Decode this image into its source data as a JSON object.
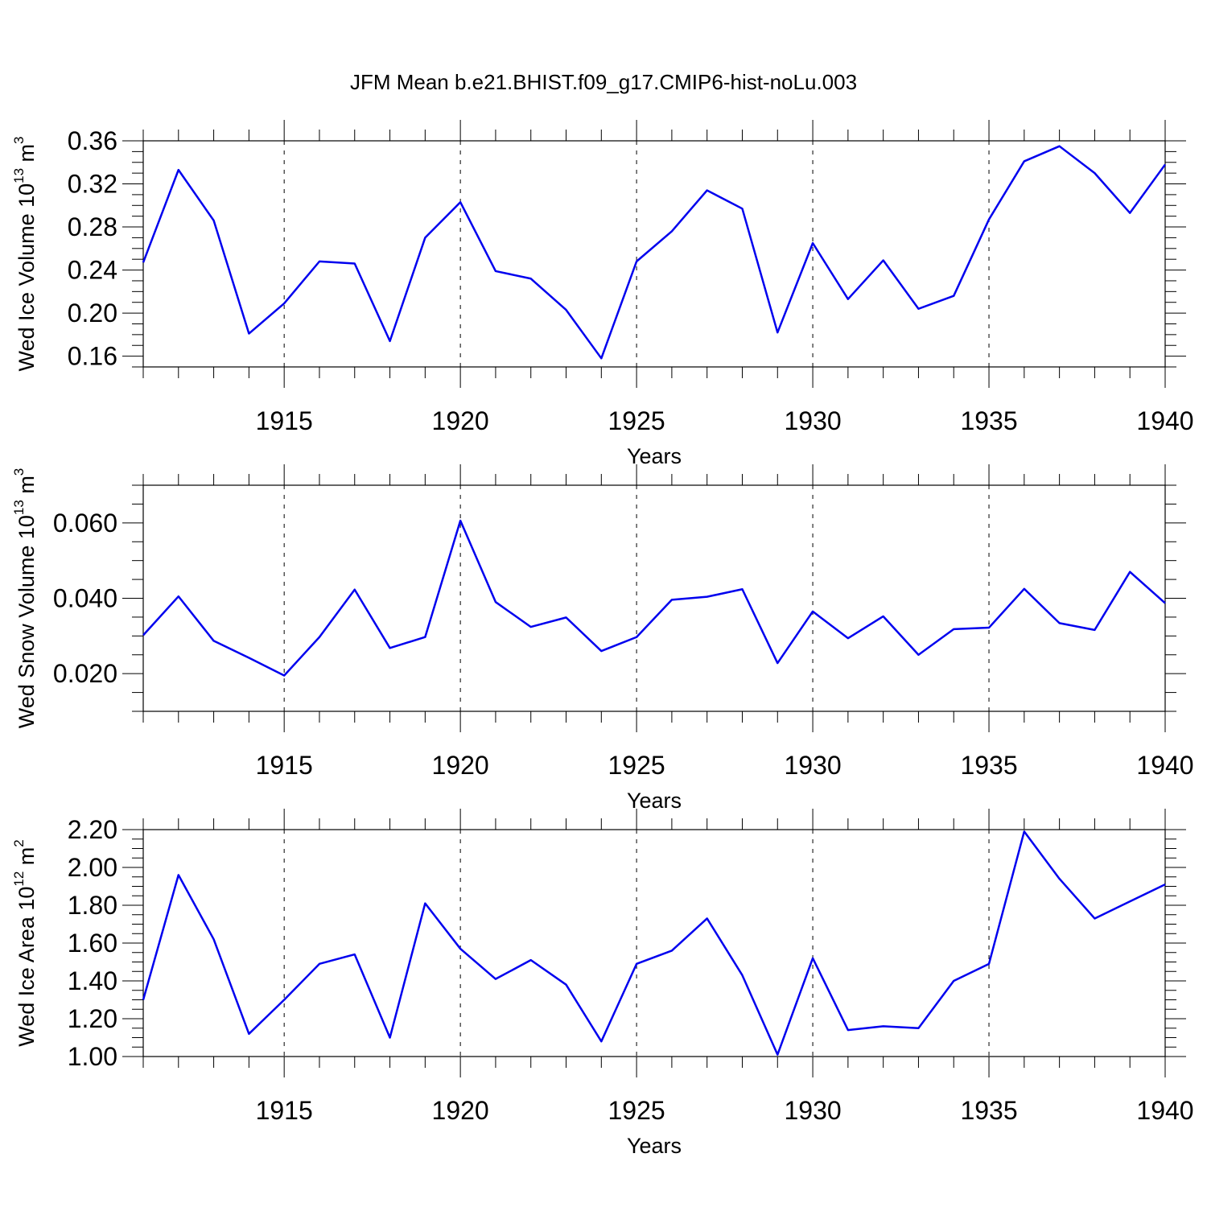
{
  "title": "JFM Mean b.e21.BHIST.f09_g17.CMIP6-hist-noLu.003",
  "colors": {
    "series": "#0000ee",
    "axis": "#000000"
  },
  "chart_data": [
    {
      "type": "line",
      "xlabel": "Years",
      "ylabel": {
        "text": "Wed Ice Volume 10",
        "sup1": "13",
        "mid": " m",
        "sup2": "3"
      },
      "ylim": [
        0.15,
        0.36
      ],
      "yticks": [
        0.16,
        0.2,
        0.24,
        0.28,
        0.32,
        0.36
      ],
      "ytick_labels": [
        "0.16",
        "0.20",
        "0.24",
        "0.28",
        "0.32",
        "0.36"
      ],
      "xlim": [
        1911,
        1940
      ],
      "xticks": [
        1915,
        1920,
        1925,
        1930,
        1935,
        1940
      ],
      "xtick_labels": [
        "1915",
        "1920",
        "1925",
        "1930",
        "1935",
        "1940"
      ],
      "grid": "vertical-dashed",
      "x": [
        1911,
        1912,
        1913,
        1914,
        1915,
        1916,
        1917,
        1918,
        1919,
        1920,
        1921,
        1922,
        1923,
        1924,
        1925,
        1926,
        1927,
        1928,
        1929,
        1930,
        1931,
        1932,
        1933,
        1934,
        1935,
        1936,
        1937,
        1938,
        1939,
        1940
      ],
      "y": [
        0.247,
        0.333,
        0.286,
        0.181,
        0.209,
        0.248,
        0.246,
        0.174,
        0.27,
        0.303,
        0.239,
        0.232,
        0.203,
        0.158,
        0.248,
        0.276,
        0.314,
        0.297,
        0.182,
        0.265,
        0.213,
        0.249,
        0.204,
        0.216,
        0.287,
        0.341,
        0.355,
        0.33,
        0.293,
        0.338
      ]
    },
    {
      "type": "line",
      "xlabel": "Years",
      "ylabel": {
        "text": "Wed Snow Volume 10",
        "sup1": "13",
        "mid": " m",
        "sup2": "3"
      },
      "ylim": [
        0.01,
        0.07
      ],
      "yticks": [
        0.02,
        0.04,
        0.06
      ],
      "ytick_labels": [
        "0.020",
        "0.040",
        "0.060"
      ],
      "xlim": [
        1911,
        1940
      ],
      "xticks": [
        1915,
        1920,
        1925,
        1930,
        1935,
        1940
      ],
      "xtick_labels": [
        "1915",
        "1920",
        "1925",
        "1930",
        "1935",
        "1940"
      ],
      "grid": "vertical-dashed",
      "x": [
        1911,
        1912,
        1913,
        1914,
        1915,
        1916,
        1917,
        1918,
        1919,
        1920,
        1921,
        1922,
        1923,
        1924,
        1925,
        1926,
        1927,
        1928,
        1929,
        1930,
        1931,
        1932,
        1933,
        1934,
        1935,
        1936,
        1937,
        1938,
        1939,
        1940
      ],
      "y": [
        0.0302,
        0.0405,
        0.0287,
        0.0242,
        0.0195,
        0.0297,
        0.0423,
        0.0268,
        0.0297,
        0.0606,
        0.039,
        0.0324,
        0.0349,
        0.026,
        0.0297,
        0.0396,
        0.0404,
        0.0424,
        0.0228,
        0.0365,
        0.0294,
        0.0352,
        0.025,
        0.0318,
        0.0322,
        0.0425,
        0.0334,
        0.0316,
        0.047,
        0.0387
      ]
    },
    {
      "type": "line",
      "xlabel": "Years",
      "ylabel": {
        "text": "Wed Ice Area 10",
        "sup1": "12",
        "mid": " m",
        "sup2": "2"
      },
      "ylim": [
        1.0,
        2.2
      ],
      "yticks": [
        1.0,
        1.2,
        1.4,
        1.6,
        1.8,
        2.0,
        2.2
      ],
      "ytick_labels": [
        "1.00",
        "1.20",
        "1.40",
        "1.60",
        "1.80",
        "2.00",
        "2.20"
      ],
      "xlim": [
        1911,
        1940
      ],
      "xticks": [
        1915,
        1920,
        1925,
        1930,
        1935,
        1940
      ],
      "xtick_labels": [
        "1915",
        "1920",
        "1925",
        "1930",
        "1935",
        "1940"
      ],
      "grid": "vertical-dashed",
      "x": [
        1911,
        1912,
        1913,
        1914,
        1915,
        1916,
        1917,
        1918,
        1919,
        1920,
        1921,
        1922,
        1923,
        1924,
        1925,
        1926,
        1927,
        1928,
        1929,
        1930,
        1931,
        1932,
        1933,
        1934,
        1935,
        1936,
        1937,
        1938,
        1939,
        1940
      ],
      "y": [
        1.3,
        1.96,
        1.62,
        1.12,
        1.3,
        1.49,
        1.54,
        1.1,
        1.81,
        1.57,
        1.41,
        1.51,
        1.38,
        1.08,
        1.49,
        1.56,
        1.73,
        1.43,
        1.01,
        1.52,
        1.14,
        1.16,
        1.15,
        1.4,
        1.49,
        2.19,
        1.94,
        1.73,
        1.82,
        1.91
      ]
    }
  ]
}
